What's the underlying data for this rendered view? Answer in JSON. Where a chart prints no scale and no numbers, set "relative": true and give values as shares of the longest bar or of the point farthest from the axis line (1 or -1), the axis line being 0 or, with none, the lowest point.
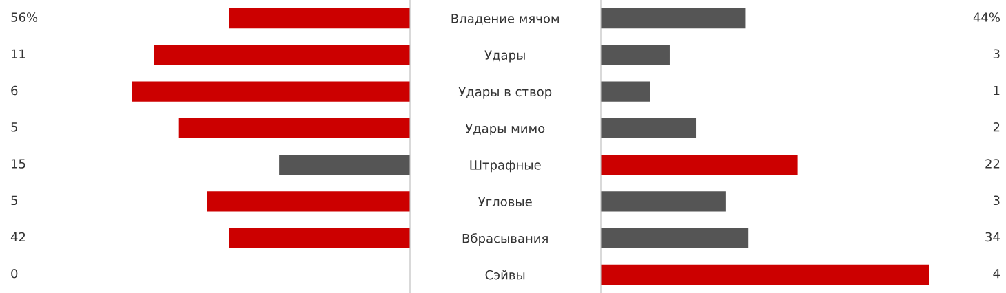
{
  "chart_data": [
    {
      "type": "bar",
      "orientation": "horizontal",
      "relative": true,
      "categories": [
        "Владение мячом",
        "Удары",
        "Удары в створ",
        "Удары мимо",
        "Штрафные",
        "Угловые",
        "Вбрасывания",
        "Сэйвы"
      ],
      "values": [
        0.65,
        0.92,
        1,
        0.83,
        0.47,
        0.73,
        0.65,
        0
      ],
      "colors": [
        "#cc0000",
        "#cc0000",
        "#cc0000",
        "#cc0000",
        "#555555",
        "#cc0000",
        "#cc0000",
        "#cc0000"
      ],
      "annotations": [
        "56%",
        "11",
        "6",
        "5",
        "15",
        "5",
        "42",
        "0"
      ]
    },
    {
      "type": "bar",
      "orientation": "horizontal",
      "relative": true,
      "categories": [
        null,
        null,
        null,
        null,
        null,
        null,
        null,
        null
      ],
      "values": [
        0.44,
        0.21,
        0.15,
        0.29,
        0.6,
        0.38,
        0.45,
        1
      ],
      "colors": [
        "#555555",
        "#555555",
        "#555555",
        "#555555",
        "#cc0000",
        "#555555",
        "#555555",
        "#cc0000"
      ],
      "annotations": [
        "44%",
        "3",
        "1",
        "2",
        "22",
        "3",
        "34",
        "4"
      ]
    }
  ]
}
